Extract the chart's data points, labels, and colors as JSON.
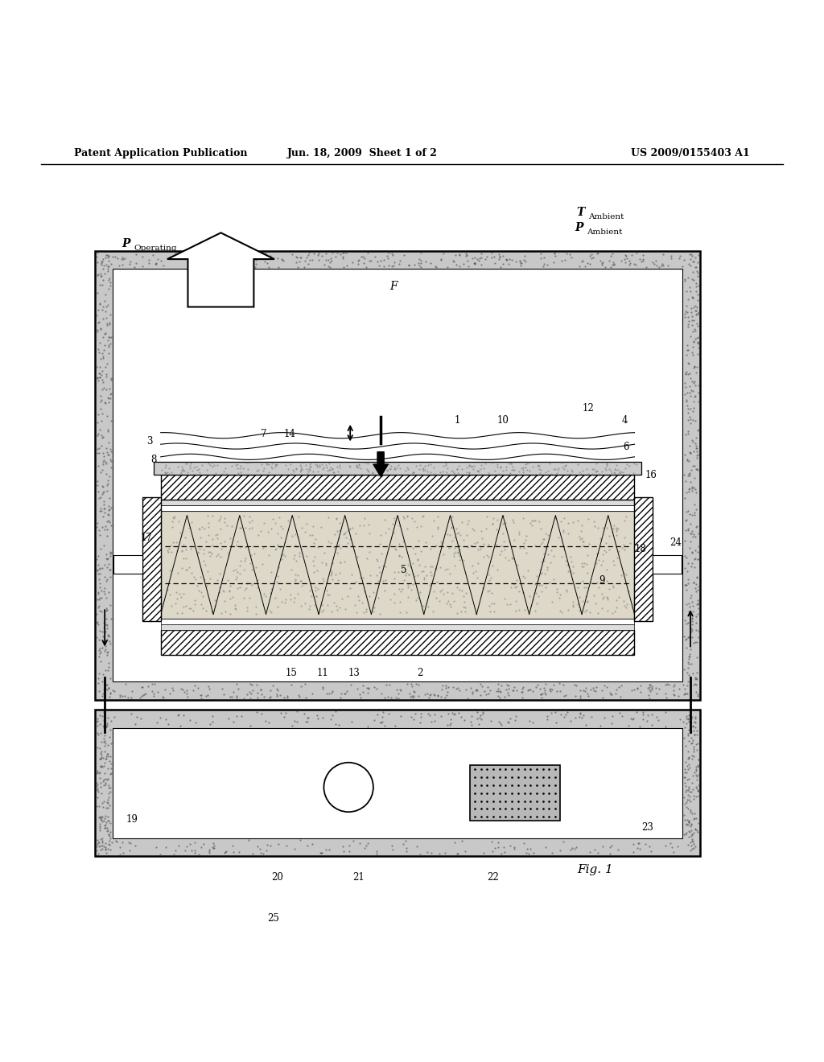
{
  "bg_color": "#ffffff",
  "header_left": "Patent Application Publication",
  "header_mid": "Jun. 18, 2009  Sheet 1 of 2",
  "header_right": "US 2009/0155403 A1",
  "fig_label": "Fig. 1"
}
